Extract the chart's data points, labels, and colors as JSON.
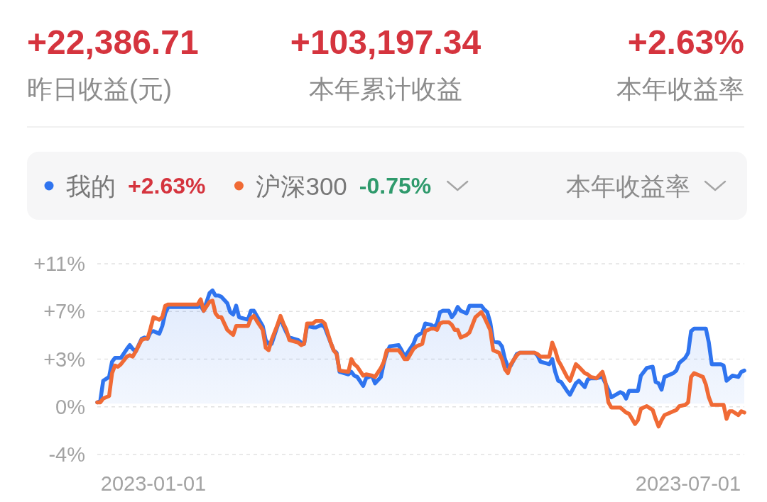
{
  "chart_data": {
    "type": "line",
    "annotations": [
      "+22,386.71",
      "昨日收益(元)",
      "+103,197.34",
      "本年累计收益",
      "+2.63%",
      "本年收益率",
      "+2.63%",
      "-0.75%",
      "本年收益率"
    ],
    "x": [
      "2022-12-13",
      "2022-12-14",
      "2022-12-15",
      "2022-12-17",
      "2022-12-18",
      "2022-12-19",
      "2022-12-20",
      "2022-12-21",
      "2022-12-23",
      "2022-12-24",
      "2022-12-25",
      "2022-12-26",
      "2022-12-28",
      "2022-12-29",
      "2022-12-30",
      "2022-12-31",
      "2023-01-01",
      "2023-01-03",
      "2023-01-04",
      "2023-01-05",
      "2023-01-06",
      "2023-01-16",
      "2023-01-17",
      "2023-01-18",
      "2023-01-20",
      "2023-01-21",
      "2023-01-22",
      "2023-01-23",
      "2023-01-24",
      "2023-01-26",
      "2023-01-27",
      "2023-01-28",
      "2023-01-29",
      "2023-01-30",
      "2023-02-02",
      "2023-02-03",
      "2023-02-04",
      "2023-02-05",
      "2023-02-07",
      "2023-02-08",
      "2023-02-09",
      "2023-02-10",
      "2023-02-12",
      "2023-02-13",
      "2023-02-14",
      "2023-02-15",
      "2023-02-16",
      "2023-02-19",
      "2023-02-20",
      "2023-02-21",
      "2023-02-22",
      "2023-02-24",
      "2023-02-25",
      "2023-02-27",
      "2023-02-28",
      "2023-03-02",
      "2023-03-03",
      "2023-03-04",
      "2023-03-05",
      "2023-03-08",
      "2023-03-09",
      "2023-03-10",
      "2023-03-11",
      "2023-03-13",
      "2023-03-14",
      "2023-03-16",
      "2023-03-17",
      "2023-03-19",
      "2023-03-20",
      "2023-03-21",
      "2023-03-22",
      "2023-03-25",
      "2023-03-26",
      "2023-03-27",
      "2023-03-28",
      "2023-03-30",
      "2023-03-31",
      "2023-04-02",
      "2023-04-03",
      "2023-04-05",
      "2023-04-06",
      "2023-04-07",
      "2023-04-08",
      "2023-04-09",
      "2023-04-11",
      "2023-04-12",
      "2023-04-13",
      "2023-04-14",
      "2023-04-15",
      "2023-04-17",
      "2023-04-18",
      "2023-04-20",
      "2023-04-22",
      "2023-04-23",
      "2023-04-24",
      "2023-04-25",
      "2023-04-26",
      "2023-04-28",
      "2023-04-29",
      "2023-04-30",
      "2023-05-01",
      "2023-05-02",
      "2023-05-04",
      "2023-05-05",
      "2023-05-10",
      "2023-05-11",
      "2023-05-12",
      "2023-05-15",
      "2023-05-16",
      "2023-05-17",
      "2023-05-18",
      "2023-05-19",
      "2023-05-21",
      "2023-05-22",
      "2023-05-24",
      "2023-05-25",
      "2023-05-27",
      "2023-05-28",
      "2023-05-29",
      "2023-05-31",
      "2023-06-02",
      "2023-06-03",
      "2023-06-04",
      "2023-06-05",
      "2023-06-08",
      "2023-06-09",
      "2023-06-10",
      "2023-06-11",
      "2023-06-13",
      "2023-06-14",
      "2023-06-15",
      "2023-06-17",
      "2023-06-19",
      "2023-06-20",
      "2023-06-21",
      "2023-06-22",
      "2023-06-23",
      "2023-06-26",
      "2023-06-27",
      "2023-06-28",
      "2023-06-30",
      "2023-07-01",
      "2023-07-02",
      "2023-07-03",
      "2023-07-06",
      "2023-07-07",
      "2023-07-08",
      "2023-07-09",
      "2023-07-12",
      "2023-07-13",
      "2023-07-14",
      "2023-07-15",
      "2023-07-16",
      "2023-07-18",
      "2023-07-19",
      "2023-07-20"
    ],
    "xlim": [
      "2022-12-13",
      "2023-07-20"
    ],
    "xticks": [
      "2023-01-01",
      "2023-07-01"
    ],
    "ylim": [
      -4,
      11
    ],
    "yticks": [
      {
        "value": 11,
        "label": "+11%"
      },
      {
        "value": 7.25,
        "label": "+7%"
      },
      {
        "value": 3.5,
        "label": "+3%"
      },
      {
        "value": -0.25,
        "label": "0%"
      },
      {
        "value": -4,
        "label": "-4%"
      }
    ],
    "grid": "y",
    "legend": "top",
    "series": [
      {
        "name": "我的",
        "type": "area",
        "color": "#2f74ef",
        "values": [
          0.1,
          0.2,
          1.8,
          2.1,
          3.3,
          3.6,
          3.6,
          3.6,
          4.3,
          4.6,
          4.3,
          4.1,
          5.1,
          5.2,
          5.1,
          5.6,
          5.7,
          5.5,
          6.1,
          7.1,
          7.6,
          7.6,
          7.7,
          7.3,
          8.7,
          8.9,
          8.5,
          8.5,
          8.4,
          7.9,
          7.2,
          7.0,
          7.7,
          6.8,
          6.6,
          7.3,
          7.3,
          6.9,
          6.1,
          5.0,
          4.7,
          4.7,
          6.1,
          6.8,
          6.1,
          5.6,
          5.2,
          5.0,
          4.8,
          4.7,
          6.1,
          6.0,
          6.0,
          6.2,
          6.0,
          4.8,
          4.2,
          4.0,
          2.5,
          2.3,
          2.5,
          2.2,
          2.1,
          1.4,
          2.0,
          2.2,
          1.6,
          2.1,
          3.2,
          4.0,
          4.5,
          4.6,
          4.2,
          3.7,
          4.0,
          4.7,
          5.3,
          5.6,
          6.3,
          6.2,
          6.0,
          6.3,
          7.2,
          7.3,
          7.3,
          6.8,
          7.1,
          7.6,
          7.3,
          7.1,
          7.7,
          7.7,
          7.7,
          7.4,
          7.2,
          6.4,
          4.9,
          4.8,
          4.5,
          3.5,
          2.9,
          3.0,
          3.9,
          4.0,
          4.0,
          3.8,
          3.3,
          3.1,
          3.5,
          2.5,
          1.8,
          1.7,
          1.0,
          0.7,
          1.6,
          1.8,
          1.3,
          1.9,
          2.0,
          2.0,
          2.1,
          1.6,
          1.1,
          0.5,
          0.9,
          0.8,
          0.4,
          1.0,
          1.0,
          1.0,
          2.2,
          2.8,
          2.9,
          1.7,
          1.6,
          1.1,
          2.1,
          2.4,
          2.6,
          3.2,
          3.6,
          4.0,
          5.7,
          5.9,
          5.9,
          5.9,
          4.8,
          3.1,
          3.1,
          3.0,
          1.8,
          2.0,
          2.2,
          2.1,
          2.5,
          2.6
        ]
      },
      {
        "name": "沪深300",
        "color": "#f06a35",
        "values": [
          0.1,
          0.1,
          0.4,
          0.6,
          2.4,
          3.0,
          2.9,
          3.1,
          3.7,
          3.8,
          3.7,
          4.1,
          5.0,
          5.1,
          5.1,
          5.9,
          6.8,
          6.6,
          6.8,
          7.7,
          7.8,
          7.8,
          8.2,
          7.3,
          8.0,
          8.1,
          7.1,
          6.8,
          6.8,
          5.8,
          5.6,
          5.4,
          6.1,
          6.1,
          6.1,
          6.7,
          6.9,
          6.5,
          5.8,
          4.4,
          4.2,
          5.0,
          6.2,
          6.9,
          6.3,
          5.8,
          5.0,
          4.8,
          4.6,
          4.7,
          6.3,
          6.3,
          6.5,
          6.5,
          6.3,
          4.8,
          4.2,
          3.9,
          2.6,
          2.5,
          3.5,
          3.1,
          2.9,
          2.2,
          2.3,
          2.2,
          2.1,
          2.8,
          3.3,
          4.2,
          4.2,
          4.2,
          3.9,
          3.5,
          3.5,
          4.3,
          4.5,
          4.7,
          5.7,
          5.9,
          5.9,
          5.8,
          6.3,
          6.4,
          6.4,
          6.2,
          5.8,
          5.8,
          5.2,
          5.4,
          5.6,
          6.8,
          7.2,
          6.8,
          6.3,
          5.8,
          4.2,
          4.0,
          3.5,
          2.7,
          2.4,
          3.1,
          3.8,
          4.0,
          4.0,
          3.9,
          3.7,
          3.7,
          4.8,
          4.2,
          3.4,
          3.0,
          2.1,
          1.8,
          3.1,
          2.9,
          2.4,
          2.3,
          2.1,
          2.0,
          2.5,
          1.7,
          0.1,
          -0.3,
          -0.3,
          -0.5,
          -0.7,
          -0.8,
          -1.6,
          -1.3,
          -0.4,
          -0.2,
          -0.5,
          -1.2,
          -1.8,
          -1.3,
          -0.9,
          -0.6,
          -0.5,
          -0.2,
          -0.1,
          0.1,
          2.1,
          2.4,
          2.1,
          1.5,
          0.5,
          -0.1,
          -0.1,
          -0.1,
          -1.2,
          -0.6,
          -0.6,
          -0.9,
          -0.6,
          -0.7
        ]
      }
    ]
  }
}
